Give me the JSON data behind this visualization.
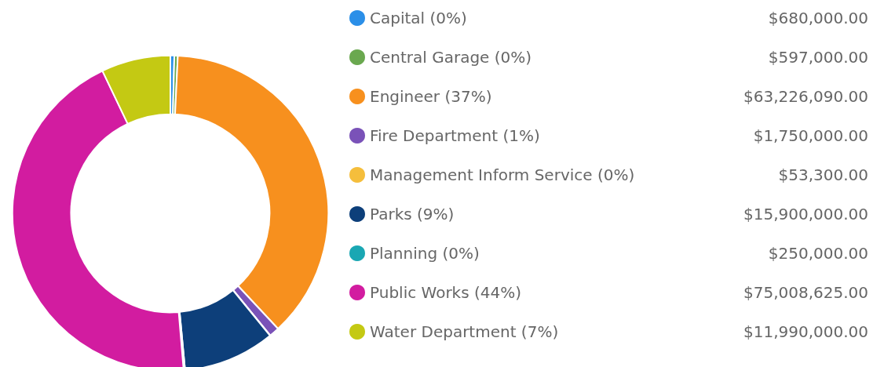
{
  "chart_data": {
    "type": "donut",
    "categories": [
      "Capital (0%)",
      "Central Garage (0%)",
      "Engineer (37%)",
      "Fire Department (1%)",
      "Management Inform Service (0%)",
      "Parks (9%)",
      "Planning (0%)",
      "Public Works (44%)",
      "Water Department (7%)"
    ],
    "values": [
      680000,
      597000,
      63226090,
      1750000,
      53300,
      15900000,
      250000,
      75008625,
      11990000
    ],
    "value_labels": [
      "$680,000.00",
      "$597,000.00",
      "$63,226,090.00",
      "$1,750,000.00",
      "$53,300.00",
      "$15,900,000.00",
      "$250,000.00",
      "$75,008,625.00",
      "$11,990,000.00"
    ],
    "colors": [
      "#2b8fe8",
      "#6aa84f",
      "#f7901e",
      "#7a52b8",
      "#f5be3c",
      "#0d3f7a",
      "#1aa7b3",
      "#d21ca0",
      "#c4c913"
    ],
    "legend": "right"
  }
}
